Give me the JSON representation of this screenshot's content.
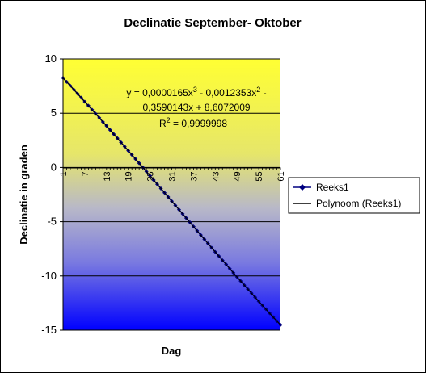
{
  "chart_data": {
    "type": "line",
    "title": "Declinatie September- Oktober",
    "xlabel": "Dag",
    "ylabel": "Declinatie in graden",
    "ylim": [
      -15,
      10
    ],
    "xlim": [
      1,
      61
    ],
    "yticks": [
      "10",
      "5",
      "0",
      "-5",
      "-10",
      "-15"
    ],
    "ytick_values": [
      10,
      5,
      0,
      -5,
      -10,
      -15
    ],
    "xticks": [
      "1",
      "7",
      "13",
      "19",
      "25",
      "31",
      "37",
      "43",
      "49",
      "55",
      "61"
    ],
    "xtick_values": [
      1,
      7,
      13,
      19,
      25,
      31,
      37,
      43,
      49,
      55,
      61
    ],
    "grid": "horizontal",
    "legend_position": "right",
    "series": [
      {
        "name": "Reeks1",
        "style": "line-with-diamond-markers",
        "color": "#000080",
        "x": [
          1,
          2,
          3,
          4,
          5,
          6,
          7,
          8,
          9,
          10,
          11,
          12,
          13,
          14,
          15,
          16,
          17,
          18,
          19,
          20,
          21,
          22,
          23,
          24,
          25,
          26,
          27,
          28,
          29,
          30,
          31,
          32,
          33,
          34,
          35,
          36,
          37,
          38,
          39,
          40,
          41,
          42,
          43,
          44,
          45,
          46,
          47,
          48,
          49,
          50,
          51,
          52,
          53,
          54,
          55,
          56,
          57,
          58,
          59,
          60,
          61
        ],
        "values": [
          8.25,
          7.89,
          7.53,
          7.16,
          6.8,
          6.43,
          6.06,
          5.69,
          5.32,
          4.95,
          4.58,
          4.2,
          3.83,
          3.45,
          3.07,
          2.69,
          2.31,
          1.93,
          1.55,
          1.16,
          0.78,
          0.39,
          0.01,
          -0.38,
          -0.77,
          -1.16,
          -1.55,
          -1.94,
          -2.33,
          -2.72,
          -3.11,
          -3.5,
          -3.89,
          -4.28,
          -4.67,
          -5.06,
          -5.45,
          -5.84,
          -6.23,
          -6.62,
          -7.01,
          -7.4,
          -7.79,
          -8.17,
          -8.56,
          -8.94,
          -9.33,
          -9.71,
          -10.09,
          -10.47,
          -10.85,
          -11.22,
          -11.6,
          -11.97,
          -12.34,
          -12.71,
          -13.07,
          -13.44,
          -13.8,
          -14.16,
          -14.51
        ]
      },
      {
        "name": "Polynoom (Reeks1)",
        "style": "line",
        "color": "#000000",
        "trendline": "polynomial order 3"
      }
    ],
    "trendline_equation": {
      "line1": "y = 0,0000165x",
      "line1_sup": "3",
      "line1_rest": " - 0,0012353x",
      "line1_sup2": "2",
      "line1_end": " -",
      "line2": "0,3590143x + 8,6072009",
      "line3": "R",
      "line3_sup": "2",
      "line3_rest": " = 0,9999998"
    }
  },
  "colors": {
    "gradient_top": "#ffff33",
    "gradient_mid": "#b8b8c8",
    "gradient_bottom": "#0000ff",
    "series_marker": "#000080",
    "grid": "#000000"
  }
}
